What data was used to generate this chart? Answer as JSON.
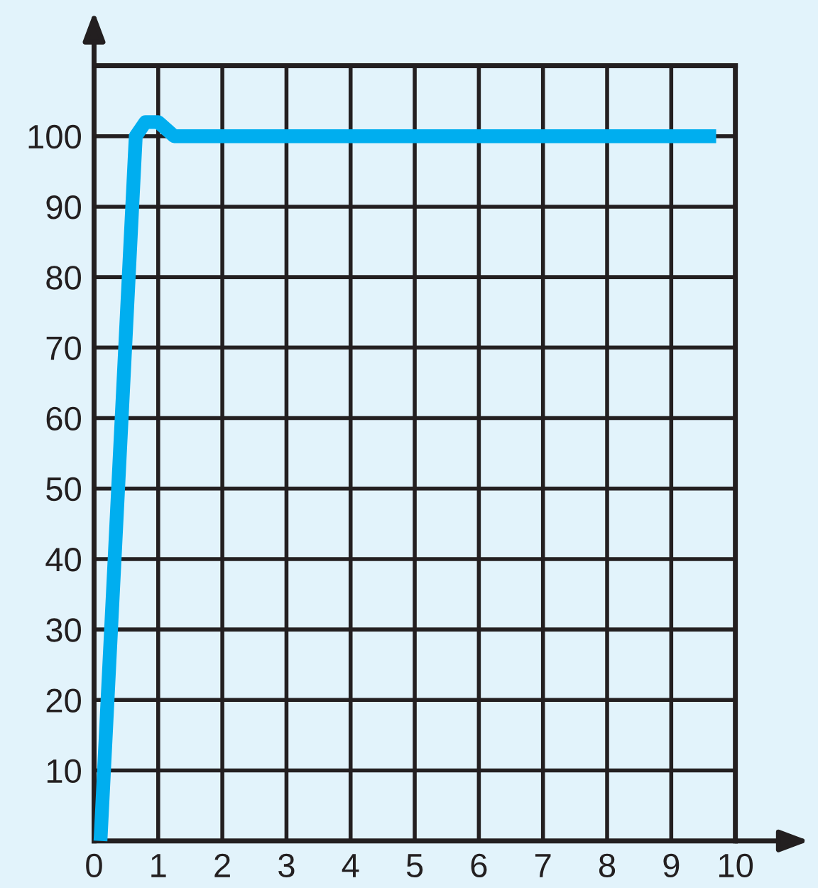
{
  "chart_data": {
    "type": "line",
    "x": [
      0.1,
      0.65,
      0.8,
      1.0,
      1.25,
      9.7
    ],
    "series": [
      {
        "color": "#00aeef",
        "values": [
          0,
          100,
          102,
          102,
          100,
          100
        ]
      }
    ],
    "xlim": [
      0,
      10
    ],
    "ylim": [
      0,
      110
    ],
    "xticks": [
      0,
      1,
      2,
      3,
      4,
      5,
      6,
      7,
      8,
      9,
      10
    ],
    "yticks": [
      10,
      20,
      30,
      40,
      50,
      60,
      70,
      80,
      90,
      100,
      {
        "value": 110,
        "label": null
      }
    ],
    "grid": true,
    "marker": "none",
    "line_style": "solid"
  }
}
